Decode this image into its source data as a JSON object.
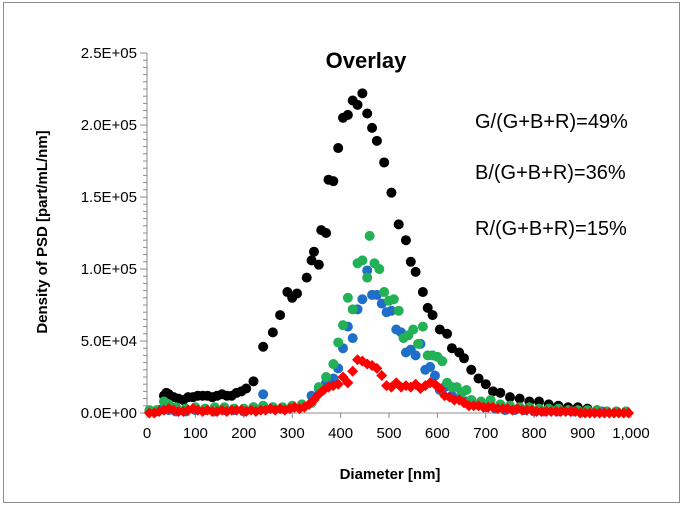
{
  "chart_data": {
    "type": "scatter",
    "title": "Overlay",
    "xlabel": "Diameter [nm]",
    "ylabel": "Density of PSD [part/mL/nm]",
    "xlim": [
      0,
      1000
    ],
    "ylim": [
      0,
      250000
    ],
    "x_ticks": [
      0,
      100,
      200,
      300,
      400,
      500,
      600,
      700,
      800,
      900,
      1000
    ],
    "x_tick_labels": [
      "0",
      "100",
      "200",
      "300",
      "400",
      "500",
      "600",
      "700",
      "800",
      "900",
      "1,000"
    ],
    "y_ticks": [
      0,
      50000,
      100000,
      150000,
      200000,
      250000
    ],
    "y_tick_labels": [
      "0.0E+00",
      "5.0E+04",
      "1.0E+05",
      "1.5E+05",
      "2.0E+05",
      "2.5E+05"
    ],
    "grid": false,
    "legend": "none",
    "annotations": [
      "G/(G+B+R)=49%",
      "B/(G+B+R)=36%",
      "R/(G+B+R)=15%"
    ],
    "series": [
      {
        "color": "#000000",
        "marker": "circle",
        "points": [
          [
            5,
            1000
          ],
          [
            15,
            1000
          ],
          [
            25,
            2000
          ],
          [
            35,
            12000
          ],
          [
            40,
            14000
          ],
          [
            45,
            13000
          ],
          [
            55,
            11000
          ],
          [
            65,
            10000
          ],
          [
            75,
            9000
          ],
          [
            85,
            11000
          ],
          [
            95,
            11000
          ],
          [
            105,
            12000
          ],
          [
            115,
            12000
          ],
          [
            125,
            12000
          ],
          [
            135,
            11000
          ],
          [
            145,
            12000
          ],
          [
            155,
            13000
          ],
          [
            165,
            12000
          ],
          [
            175,
            12000
          ],
          [
            185,
            14000
          ],
          [
            195,
            15000
          ],
          [
            205,
            17000
          ],
          [
            220,
            22000
          ],
          [
            240,
            46000
          ],
          [
            260,
            56000
          ],
          [
            275,
            68000
          ],
          [
            290,
            84000
          ],
          [
            300,
            80000
          ],
          [
            310,
            83000
          ],
          [
            330,
            94000
          ],
          [
            340,
            106000
          ],
          [
            345,
            112000
          ],
          [
            355,
            103000
          ],
          [
            360,
            127000
          ],
          [
            370,
            125000
          ],
          [
            375,
            162000
          ],
          [
            385,
            161000
          ],
          [
            395,
            184000
          ],
          [
            405,
            205000
          ],
          [
            415,
            207000
          ],
          [
            425,
            217000
          ],
          [
            435,
            214000
          ],
          [
            445,
            222000
          ],
          [
            455,
            208000
          ],
          [
            465,
            198000
          ],
          [
            475,
            189000
          ],
          [
            490,
            174000
          ],
          [
            505,
            153000
          ],
          [
            520,
            131000
          ],
          [
            535,
            120000
          ],
          [
            545,
            105000
          ],
          [
            555,
            98000
          ],
          [
            570,
            84000
          ],
          [
            580,
            73000
          ],
          [
            590,
            68000
          ],
          [
            605,
            58000
          ],
          [
            620,
            55000
          ],
          [
            630,
            45000
          ],
          [
            645,
            42000
          ],
          [
            655,
            38000
          ],
          [
            670,
            30000
          ],
          [
            685,
            24000
          ],
          [
            700,
            20000
          ],
          [
            715,
            15000
          ],
          [
            730,
            14000
          ],
          [
            750,
            11000
          ],
          [
            770,
            10000
          ],
          [
            790,
            8000
          ],
          [
            810,
            8000
          ],
          [
            830,
            6000
          ],
          [
            850,
            5000
          ],
          [
            870,
            4000
          ],
          [
            890,
            4000
          ],
          [
            910,
            3000
          ],
          [
            930,
            2000
          ],
          [
            950,
            1000
          ],
          [
            970,
            1000
          ],
          [
            990,
            1000
          ]
        ]
      },
      {
        "color": "#1f6fc8",
        "marker": "circle",
        "points": [
          [
            5,
            1000
          ],
          [
            20,
            1000
          ],
          [
            35,
            3000
          ],
          [
            45,
            2000
          ],
          [
            60,
            1000
          ],
          [
            80,
            1000
          ],
          [
            100,
            2000
          ],
          [
            120,
            2000
          ],
          [
            140,
            1000
          ],
          [
            160,
            2000
          ],
          [
            180,
            2000
          ],
          [
            200,
            1000
          ],
          [
            220,
            4000
          ],
          [
            240,
            13000
          ],
          [
            260,
            4000
          ],
          [
            280,
            3000
          ],
          [
            300,
            4000
          ],
          [
            320,
            5000
          ],
          [
            340,
            12000
          ],
          [
            355,
            17000
          ],
          [
            370,
            21000
          ],
          [
            385,
            24000
          ],
          [
            395,
            31000
          ],
          [
            405,
            45000
          ],
          [
            415,
            60000
          ],
          [
            425,
            52000
          ],
          [
            435,
            72000
          ],
          [
            445,
            79000
          ],
          [
            455,
            99000
          ],
          [
            465,
            82000
          ],
          [
            475,
            82000
          ],
          [
            485,
            76000
          ],
          [
            495,
            70000
          ],
          [
            505,
            71000
          ],
          [
            515,
            58000
          ],
          [
            525,
            56000
          ],
          [
            535,
            42000
          ],
          [
            545,
            44000
          ],
          [
            555,
            40000
          ],
          [
            565,
            48000
          ],
          [
            575,
            30000
          ],
          [
            585,
            32000
          ],
          [
            595,
            26000
          ],
          [
            605,
            16000
          ],
          [
            615,
            18000
          ],
          [
            630,
            12000
          ],
          [
            645,
            10000
          ],
          [
            660,
            8000
          ],
          [
            680,
            6000
          ],
          [
            700,
            4000
          ],
          [
            720,
            3000
          ],
          [
            740,
            2000
          ],
          [
            760,
            2000
          ],
          [
            780,
            2000
          ],
          [
            800,
            1000
          ],
          [
            820,
            1000
          ],
          [
            850,
            1000
          ],
          [
            880,
            1000
          ],
          [
            910,
            1000
          ],
          [
            940,
            1000
          ],
          [
            970,
            1000
          ],
          [
            990,
            1000
          ]
        ]
      },
      {
        "color": "#22b155",
        "marker": "circle",
        "points": [
          [
            5,
            2000
          ],
          [
            20,
            2000
          ],
          [
            35,
            8000
          ],
          [
            45,
            6000
          ],
          [
            60,
            4000
          ],
          [
            80,
            3000
          ],
          [
            100,
            4000
          ],
          [
            120,
            3000
          ],
          [
            140,
            4000
          ],
          [
            160,
            4000
          ],
          [
            180,
            3000
          ],
          [
            200,
            3000
          ],
          [
            220,
            4000
          ],
          [
            240,
            5000
          ],
          [
            260,
            4000
          ],
          [
            280,
            4000
          ],
          [
            300,
            5000
          ],
          [
            320,
            6000
          ],
          [
            340,
            7000
          ],
          [
            355,
            18000
          ],
          [
            370,
            25000
          ],
          [
            385,
            34000
          ],
          [
            395,
            49000
          ],
          [
            405,
            61000
          ],
          [
            415,
            80000
          ],
          [
            425,
            72000
          ],
          [
            435,
            104000
          ],
          [
            445,
            106000
          ],
          [
            455,
            94000
          ],
          [
            460,
            123000
          ],
          [
            470,
            104000
          ],
          [
            480,
            100000
          ],
          [
            490,
            84000
          ],
          [
            500,
            78000
          ],
          [
            510,
            79000
          ],
          [
            520,
            71000
          ],
          [
            530,
            52000
          ],
          [
            540,
            54000
          ],
          [
            550,
            58000
          ],
          [
            560,
            48000
          ],
          [
            570,
            60000
          ],
          [
            580,
            40000
          ],
          [
            590,
            40000
          ],
          [
            600,
            39000
          ],
          [
            610,
            36000
          ],
          [
            620,
            21000
          ],
          [
            630,
            18000
          ],
          [
            640,
            18000
          ],
          [
            650,
            14000
          ],
          [
            660,
            16000
          ],
          [
            670,
            9000
          ],
          [
            690,
            8000
          ],
          [
            710,
            9000
          ],
          [
            730,
            6000
          ],
          [
            750,
            5000
          ],
          [
            770,
            4000
          ],
          [
            790,
            4000
          ],
          [
            810,
            3000
          ],
          [
            830,
            3000
          ],
          [
            850,
            3000
          ],
          [
            870,
            2000
          ],
          [
            890,
            2000
          ],
          [
            910,
            2000
          ],
          [
            930,
            2000
          ],
          [
            950,
            1000
          ],
          [
            970,
            1000
          ],
          [
            990,
            1000
          ]
        ]
      },
      {
        "color": "#ff0000",
        "marker": "diamond",
        "points": [
          [
            5,
            0
          ],
          [
            15,
            0
          ],
          [
            25,
            1000
          ],
          [
            35,
            2000
          ],
          [
            45,
            3000
          ],
          [
            55,
            2000
          ],
          [
            65,
            1000
          ],
          [
            75,
            1000
          ],
          [
            85,
            2000
          ],
          [
            95,
            3000
          ],
          [
            105,
            2000
          ],
          [
            115,
            1000
          ],
          [
            125,
            2000
          ],
          [
            135,
            1000
          ],
          [
            145,
            1000
          ],
          [
            155,
            2000
          ],
          [
            165,
            1000
          ],
          [
            175,
            2000
          ],
          [
            185,
            2000
          ],
          [
            195,
            2000
          ],
          [
            205,
            1000
          ],
          [
            215,
            2000
          ],
          [
            225,
            1000
          ],
          [
            235,
            2000
          ],
          [
            245,
            2000
          ],
          [
            255,
            3000
          ],
          [
            265,
            2000
          ],
          [
            275,
            3000
          ],
          [
            285,
            2000
          ],
          [
            295,
            3000
          ],
          [
            305,
            4000
          ],
          [
            315,
            3000
          ],
          [
            325,
            4000
          ],
          [
            335,
            6000
          ],
          [
            345,
            9000
          ],
          [
            355,
            13000
          ],
          [
            365,
            16000
          ],
          [
            375,
            18000
          ],
          [
            385,
            19000
          ],
          [
            395,
            20000
          ],
          [
            405,
            25000
          ],
          [
            415,
            21000
          ],
          [
            425,
            29000
          ],
          [
            435,
            37000
          ],
          [
            445,
            36000
          ],
          [
            455,
            34000
          ],
          [
            465,
            33000
          ],
          [
            475,
            31000
          ],
          [
            485,
            26000
          ],
          [
            495,
            19000
          ],
          [
            505,
            18000
          ],
          [
            515,
            21000
          ],
          [
            525,
            18000
          ],
          [
            535,
            19000
          ],
          [
            545,
            18000
          ],
          [
            555,
            20000
          ],
          [
            565,
            17000
          ],
          [
            575,
            19000
          ],
          [
            585,
            21000
          ],
          [
            595,
            20000
          ],
          [
            605,
            17000
          ],
          [
            615,
            12000
          ],
          [
            625,
            11000
          ],
          [
            635,
            9000
          ],
          [
            645,
            9000
          ],
          [
            655,
            7000
          ],
          [
            665,
            5000
          ],
          [
            675,
            5000
          ],
          [
            685,
            5000
          ],
          [
            695,
            4000
          ],
          [
            705,
            4000
          ],
          [
            715,
            4000
          ],
          [
            725,
            3000
          ],
          [
            735,
            3000
          ],
          [
            745,
            3000
          ],
          [
            755,
            2000
          ],
          [
            765,
            3000
          ],
          [
            775,
            2000
          ],
          [
            785,
            2000
          ],
          [
            795,
            2000
          ],
          [
            805,
            1000
          ],
          [
            815,
            1000
          ],
          [
            825,
            1000
          ],
          [
            835,
            1000
          ],
          [
            845,
            1000
          ],
          [
            855,
            1000
          ],
          [
            865,
            1000
          ],
          [
            875,
            1000
          ],
          [
            885,
            1000
          ],
          [
            895,
            0
          ],
          [
            905,
            0
          ],
          [
            915,
            0
          ],
          [
            925,
            0
          ],
          [
            935,
            0
          ],
          [
            945,
            0
          ],
          [
            955,
            0
          ],
          [
            965,
            0
          ],
          [
            975,
            0
          ],
          [
            985,
            0
          ],
          [
            995,
            0
          ]
        ]
      }
    ]
  }
}
